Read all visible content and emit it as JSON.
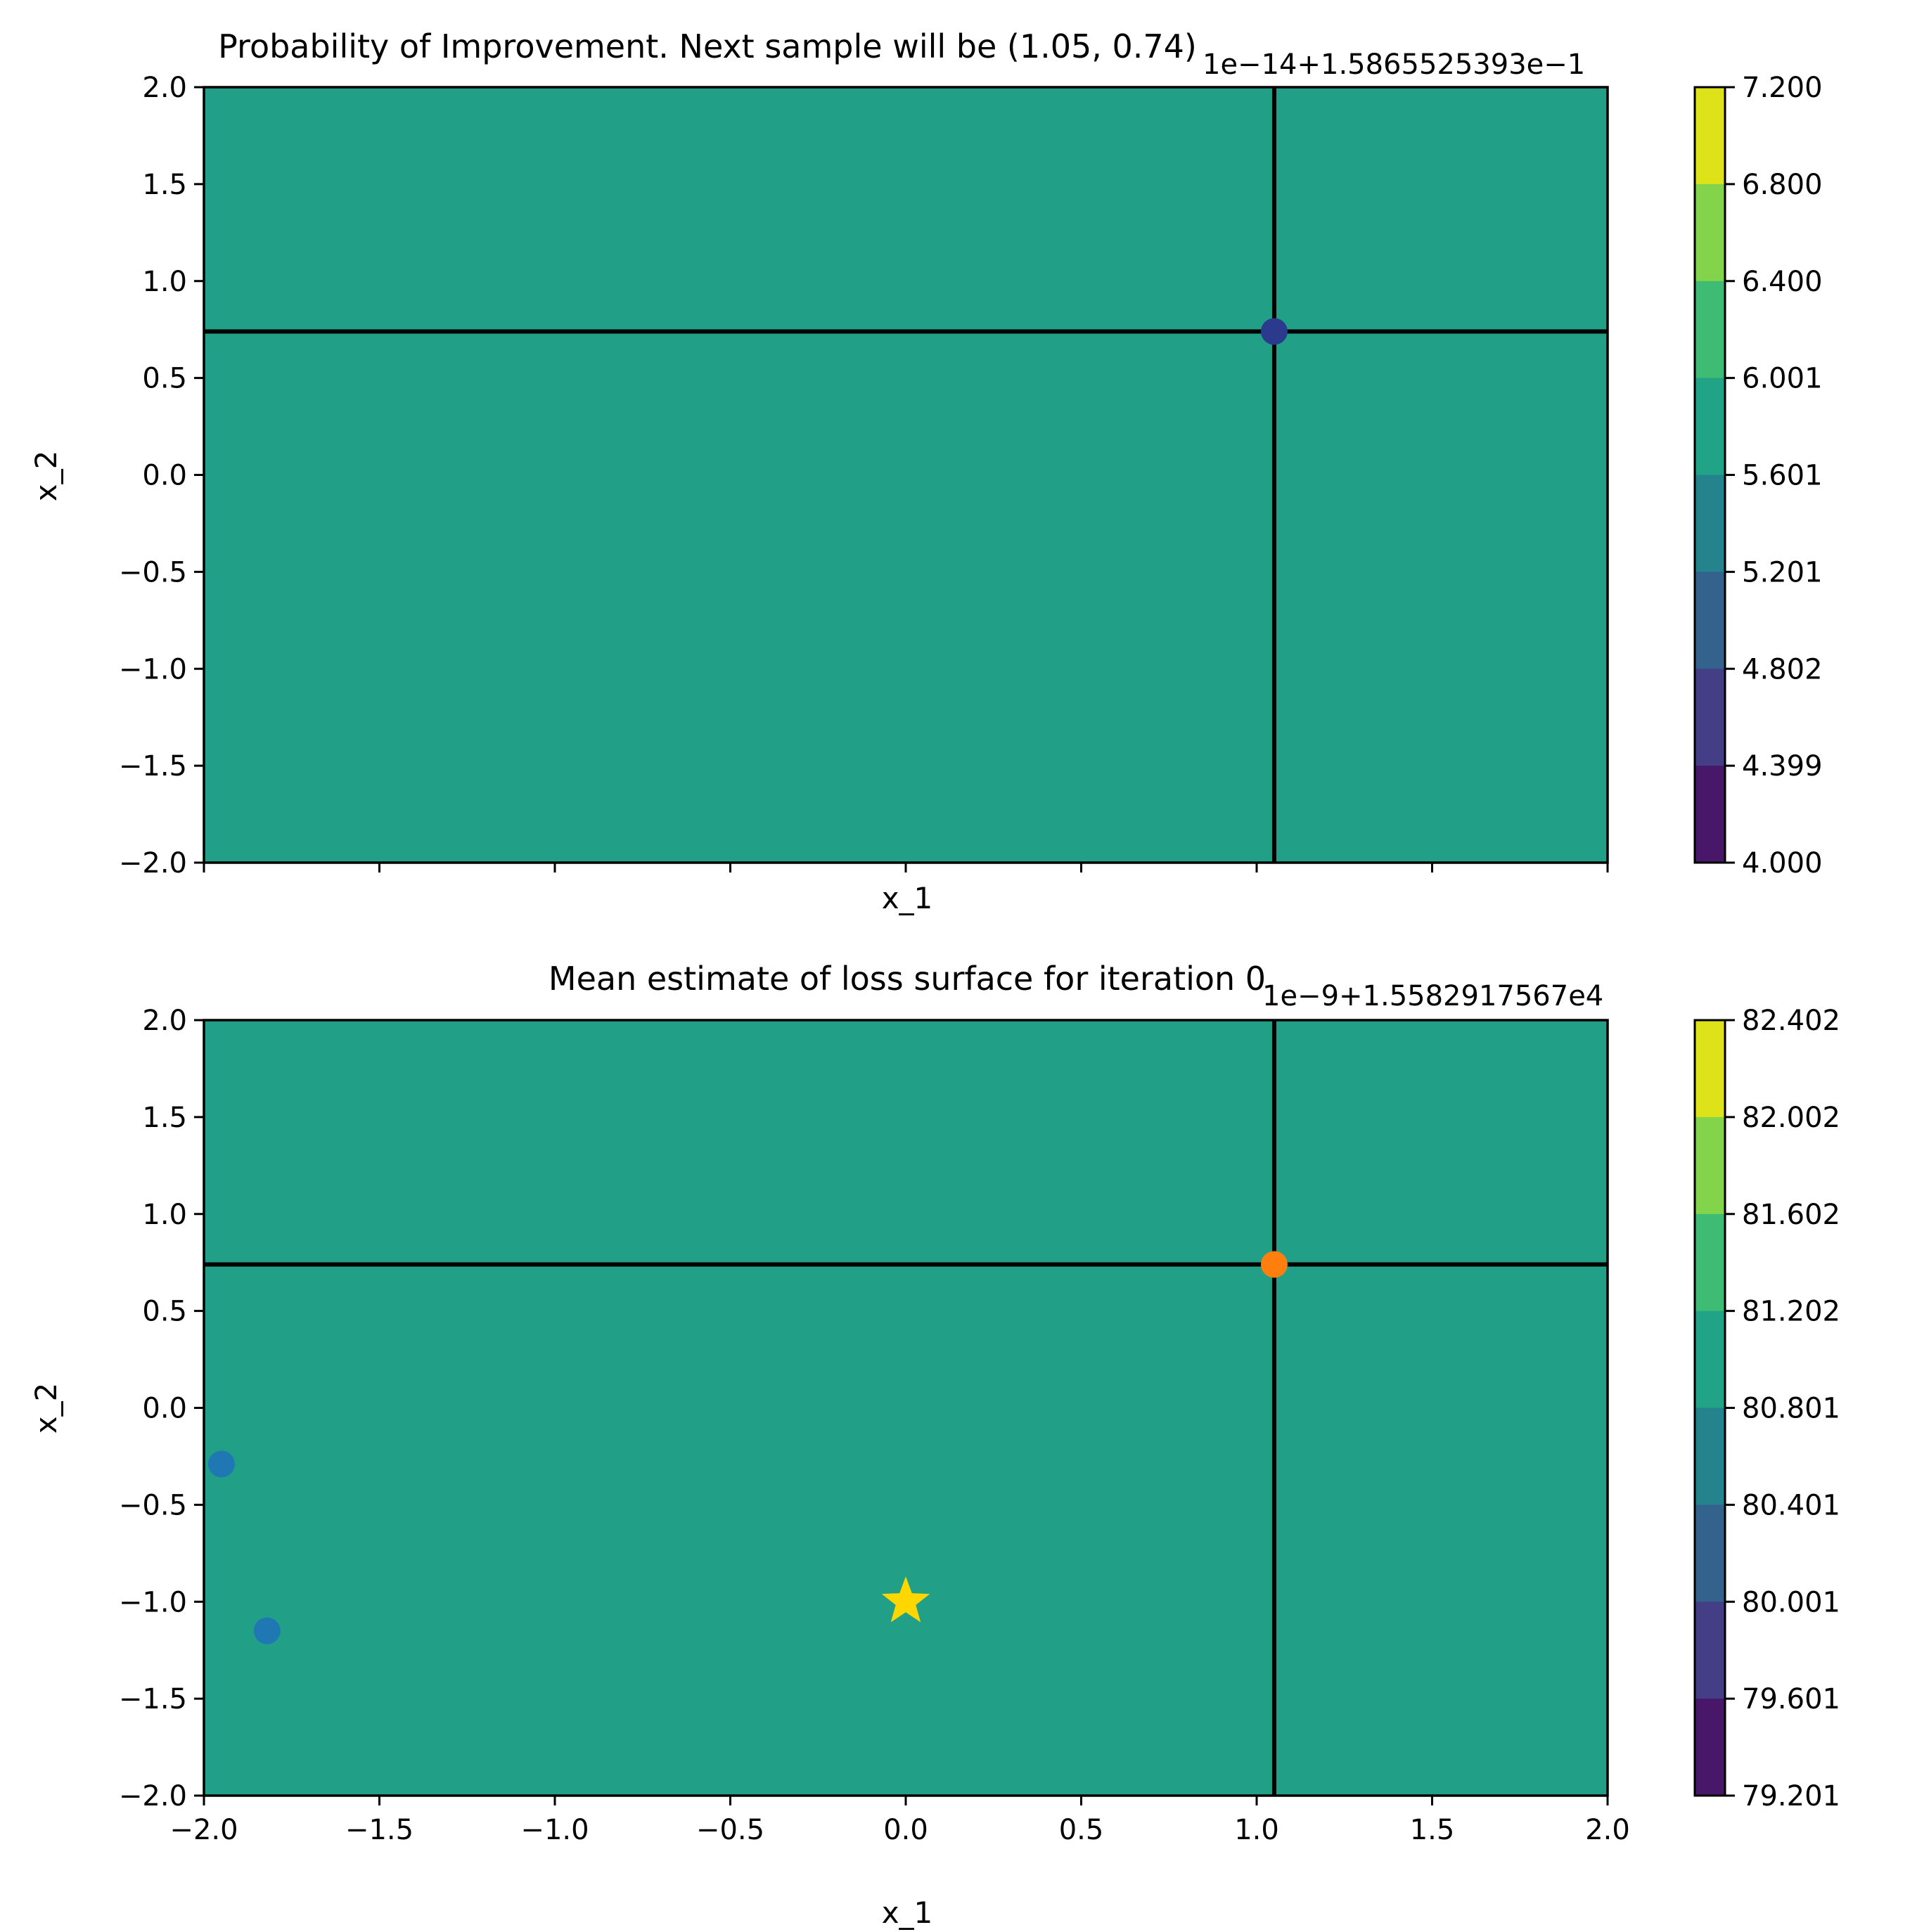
{
  "chart_data": [
    {
      "type": "contour",
      "title": "Probability of Improvement. Next sample will be (1.05, 0.74)",
      "xlabel": "x_1",
      "ylabel": "x_2",
      "xlim": [
        -2.0,
        2.0
      ],
      "ylim": [
        -2.0,
        2.0
      ],
      "show_xticklabels": false,
      "yticks": [
        "2.0",
        "1.5",
        "1.0",
        "0.5",
        "0.0",
        "−0.5",
        "−1.0",
        "−1.5",
        "−2.0"
      ],
      "ytick_values": [
        2.0,
        1.5,
        1.0,
        0.5,
        0.0,
        -0.5,
        -1.0,
        -1.5,
        -2.0
      ],
      "xtick_values": [
        -2.0,
        -1.5,
        -1.0,
        -0.5,
        0.0,
        0.5,
        1.0,
        1.5,
        2.0
      ],
      "fill_color": "#21a087",
      "crosshair": {
        "x": 1.05,
        "y": 0.74,
        "color": "#000000"
      },
      "points": [
        {
          "x": 1.05,
          "y": 0.74,
          "color": "#2b3a8c",
          "marker": "circle"
        }
      ],
      "colorbar": {
        "offset_text": "1e−14+1.5865525393e−1",
        "ticks": [
          "7.200",
          "6.800",
          "6.400",
          "6.001",
          "5.601",
          "5.201",
          "4.802",
          "4.399",
          "4.000"
        ],
        "levels": [
          "#dde318",
          "#84d44b",
          "#3fbc73",
          "#20a386",
          "#25838e",
          "#33638d",
          "#433e85",
          "#481769"
        ]
      }
    },
    {
      "type": "contour",
      "title": "Mean estimate of loss surface for iteration 0",
      "xlabel": "x_1",
      "ylabel": "x_2",
      "xlim": [
        -2.0,
        2.0
      ],
      "ylim": [
        -2.0,
        2.0
      ],
      "show_xticklabels": true,
      "xticks": [
        "−2.0",
        "−1.5",
        "−1.0",
        "−0.5",
        "0.0",
        "0.5",
        "1.0",
        "1.5",
        "2.0"
      ],
      "xtick_values": [
        -2.0,
        -1.5,
        -1.0,
        -0.5,
        0.0,
        0.5,
        1.0,
        1.5,
        2.0
      ],
      "yticks": [
        "2.0",
        "1.5",
        "1.0",
        "0.5",
        "0.0",
        "−0.5",
        "−1.0",
        "−1.5",
        "−2.0"
      ],
      "ytick_values": [
        2.0,
        1.5,
        1.0,
        0.5,
        0.0,
        -0.5,
        -1.0,
        -1.5,
        -2.0
      ],
      "fill_color": "#21a087",
      "crosshair": {
        "x": 1.05,
        "y": 0.74,
        "color": "#000000"
      },
      "points": [
        {
          "x": -1.95,
          "y": -0.29,
          "color": "#1f77b4",
          "marker": "circle"
        },
        {
          "x": -1.82,
          "y": -1.15,
          "color": "#1f77b4",
          "marker": "circle"
        },
        {
          "x": 1.05,
          "y": 0.74,
          "color": "#ff7f0e",
          "marker": "circle"
        },
        {
          "x": 0.0,
          "y": -1.0,
          "color": "#ffd700",
          "marker": "star"
        }
      ],
      "colorbar": {
        "offset_text": "1e−9+1.5582917567e4",
        "ticks": [
          "82.402",
          "82.002",
          "81.602",
          "81.202",
          "80.801",
          "80.401",
          "80.001",
          "79.601",
          "79.201"
        ],
        "levels": [
          "#dde318",
          "#84d44b",
          "#3fbc73",
          "#20a386",
          "#25838e",
          "#33638d",
          "#433e85",
          "#481769"
        ]
      }
    }
  ]
}
